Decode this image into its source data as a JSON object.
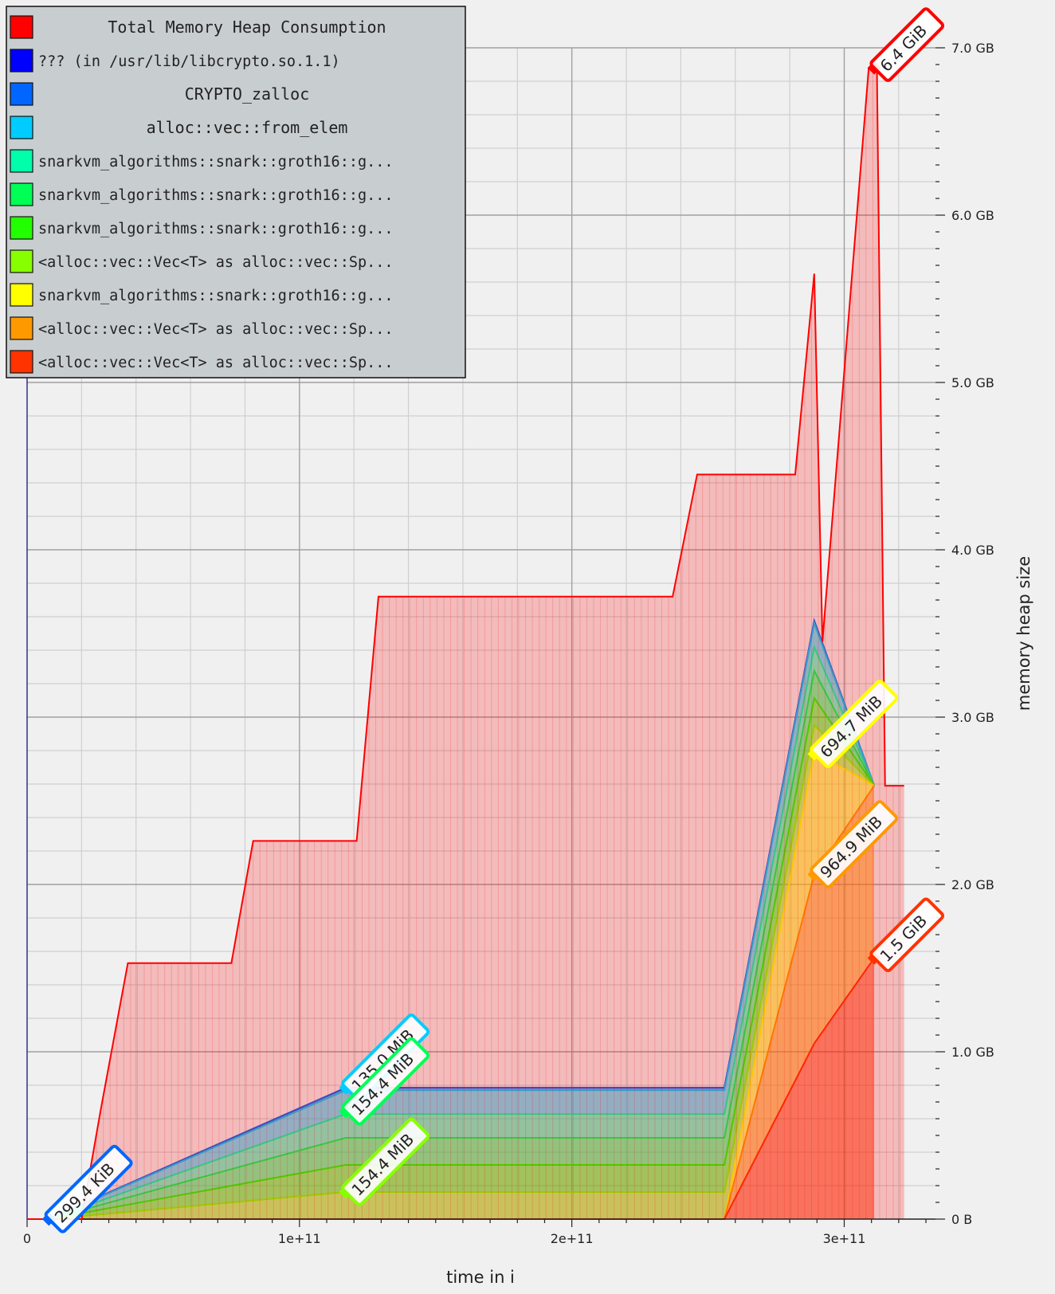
{
  "chart_data": {
    "type": "area",
    "stacked": true,
    "xlabel": "time in i",
    "ylabel": "memory heap size",
    "x_ticks": [
      {
        "value": 0,
        "label": "0"
      },
      {
        "value": 100000000000,
        "label": "1e+11"
      },
      {
        "value": 200000000000,
        "label": "2e+11"
      },
      {
        "value": 300000000000,
        "label": "3e+11"
      }
    ],
    "y_ticks": [
      {
        "value": 0,
        "label": "0 B"
      },
      {
        "value": 1000000000,
        "label": "1.0 GB"
      },
      {
        "value": 2000000000,
        "label": "2.0 GB"
      },
      {
        "value": 3000000000,
        "label": "3.0 GB"
      },
      {
        "value": 4000000000,
        "label": "4.0 GB"
      },
      {
        "value": 5000000000,
        "label": "5.0 GB"
      },
      {
        "value": 6000000000,
        "label": "6.0 GB"
      },
      {
        "value": 7000000000,
        "label": "7.0 GB"
      }
    ],
    "xlim": [
      0,
      322000000000
    ],
    "ylim": [
      0,
      7000000000
    ],
    "grid": true,
    "legend_placement": "top-left",
    "total": {
      "name": "Total Memory Heap Consumption",
      "color": "#ff0000",
      "points": [
        [
          0,
          0
        ],
        [
          20000000000,
          0
        ],
        [
          27000000000,
          650000000
        ],
        [
          37000000000,
          1530000000
        ],
        [
          75000000000,
          1530000000
        ],
        [
          83000000000,
          2260000000
        ],
        [
          121000000000,
          2260000000
        ],
        [
          129000000000,
          3720000000
        ],
        [
          237000000000,
          3720000000
        ],
        [
          246000000000,
          4450000000
        ],
        [
          282000000000,
          4450000000
        ],
        [
          289000000000,
          5650000000
        ],
        [
          292000000000,
          3450000000
        ],
        [
          309000000000,
          6880000000
        ],
        [
          312000000000,
          6880000000
        ],
        [
          315000000000,
          2590000000
        ],
        [
          322000000000,
          2590000000
        ]
      ]
    },
    "series": [
      {
        "name": "<alloc::vec::Vec<T> as alloc::vec::Sp...",
        "color": "#ff3300",
        "points": [
          [
            256000000000,
            0
          ],
          [
            289000000000,
            1050000000
          ],
          [
            311000000000,
            1560000000
          ]
        ]
      },
      {
        "name": "<alloc::vec::Vec<T> as alloc::vec::Sp...",
        "color": "#ff9900",
        "points": [
          [
            256000000000,
            0
          ],
          [
            289000000000,
            1010000000
          ],
          [
            311000000000,
            1030000000
          ]
        ]
      },
      {
        "name": "snarkvm_algorithms::snark::groth16::g...",
        "color": "#ffff00",
        "points": [
          [
            256000000000,
            0
          ],
          [
            289000000000,
            730000000
          ],
          [
            311000000000,
            0
          ]
        ]
      },
      {
        "name": "<alloc::vec::Vec<T> as alloc::vec::Sp...",
        "color": "#88ff00",
        "points": [
          [
            8000000000,
            0
          ],
          [
            117000000000,
            162000000
          ],
          [
            256000000000,
            162000000
          ],
          [
            289000000000,
            162000000
          ],
          [
            311000000000,
            0
          ]
        ]
      },
      {
        "name": "snarkvm_algorithms::snark::groth16::g...",
        "color": "#22ff00",
        "points": [
          [
            8000000000,
            0
          ],
          [
            117000000000,
            162000000
          ],
          [
            256000000000,
            162000000
          ],
          [
            289000000000,
            162000000
          ],
          [
            311000000000,
            0
          ]
        ]
      },
      {
        "name": "snarkvm_algorithms::snark::groth16::g...",
        "color": "#00ff55",
        "points": [
          [
            8000000000,
            0
          ],
          [
            117000000000,
            162000000
          ],
          [
            256000000000,
            162000000
          ],
          [
            289000000000,
            162000000
          ],
          [
            311000000000,
            0
          ]
        ]
      },
      {
        "name": "snarkvm_algorithms::snark::groth16::g...",
        "color": "#00ffaa",
        "points": [
          [
            8000000000,
            0
          ],
          [
            117000000000,
            142000000
          ],
          [
            256000000000,
            142000000
          ],
          [
            289000000000,
            142000000
          ],
          [
            311000000000,
            0
          ]
        ]
      },
      {
        "name": "alloc::vec::from_elem",
        "color": "#00ccff",
        "points": [
          [
            8000000000,
            0
          ],
          [
            117000000000,
            142000000
          ],
          [
            256000000000,
            142000000
          ],
          [
            289000000000,
            142000000
          ],
          [
            311000000000,
            0
          ]
        ]
      },
      {
        "name": "CRYPTO_zalloc",
        "color": "#0066ff",
        "points": [
          [
            8000000000,
            300000
          ],
          [
            117000000000,
            15000000
          ],
          [
            256000000000,
            15000000
          ],
          [
            289000000000,
            15000000
          ],
          [
            311000000000,
            0
          ]
        ]
      },
      {
        "name": "??? (in /usr/lib/libcrypto.so.1.1)",
        "color": "#0000ff",
        "points": [
          [
            8000000000,
            300000
          ],
          [
            117000000000,
            0
          ],
          [
            256000000000,
            0
          ],
          [
            289000000000,
            0
          ],
          [
            311000000000,
            0
          ]
        ]
      }
    ],
    "legend": [
      {
        "label": "Total Memory Heap Consumption",
        "color": "#ff0000"
      },
      {
        "label": "??? (in /usr/lib/libcrypto.so.1.1)",
        "color": "#0000ff"
      },
      {
        "label": "CRYPTO_zalloc",
        "color": "#0066ff"
      },
      {
        "label": "alloc::vec::from_elem",
        "color": "#00ccff"
      },
      {
        "label": "snarkvm_algorithms::snark::groth16::g...",
        "color": "#00ffaa"
      },
      {
        "label": "snarkvm_algorithms::snark::groth16::g...",
        "color": "#00ff55"
      },
      {
        "label": "snarkvm_algorithms::snark::groth16::g...",
        "color": "#22ff00"
      },
      {
        "label": "<alloc::vec::Vec<T> as alloc::vec::Sp...",
        "color": "#88ff00"
      },
      {
        "label": "snarkvm_algorithms::snark::groth16::g...",
        "color": "#ffff00"
      },
      {
        "label": "<alloc::vec::Vec<T> as alloc::vec::Sp...",
        "color": "#ff9900"
      },
      {
        "label": "<alloc::vec::Vec<T> as alloc::vec::Sp...",
        "color": "#ff3300"
      }
    ],
    "annotations": [
      {
        "text": "6.4 GiB",
        "color": "#ff0000",
        "x": 311000000000,
        "y": 6880000000
      },
      {
        "text": "694.7 MiB",
        "color": "#ffff00",
        "x": 289000000000,
        "y": 2780000000
      },
      {
        "text": "964.9 MiB",
        "color": "#ff9900",
        "x": 289000000000,
        "y": 2060000000
      },
      {
        "text": "1.5 GiB",
        "color": "#ff3300",
        "x": 311000000000,
        "y": 1560000000
      },
      {
        "text": "135.0 MiB",
        "color": "#00ccff",
        "x": 117000000000,
        "y": 785000000
      },
      {
        "text": "154.4 MiB",
        "color": "#00ff55",
        "x": 117000000000,
        "y": 643000000
      },
      {
        "text": "154.4 MiB",
        "color": "#88ff00",
        "x": 117000000000,
        "y": 162000000
      },
      {
        "text": "299.4 KiB",
        "color": "#0066ff",
        "x": 8000000000,
        "y": 300000
      }
    ]
  }
}
